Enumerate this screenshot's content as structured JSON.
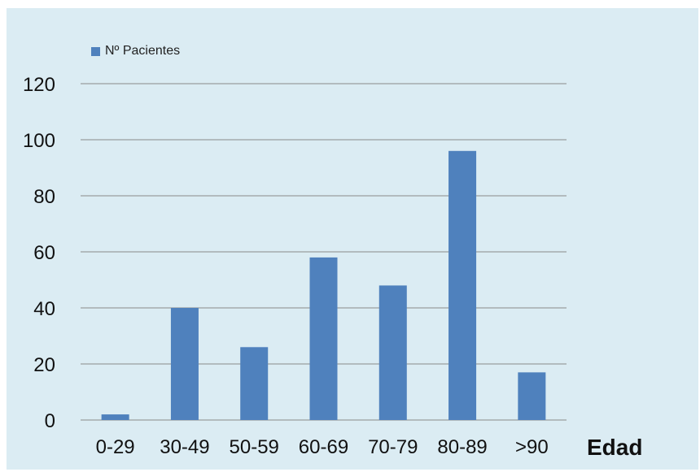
{
  "chart_data": {
    "type": "bar",
    "categories": [
      "0-29",
      "30-49",
      "50-59",
      "60-69",
      "70-79",
      "80-89",
      ">90"
    ],
    "series": [
      {
        "name": "Nº Pacientes",
        "values": [
          2,
          40,
          26,
          58,
          48,
          96,
          17
        ],
        "color": "#4f81bd"
      }
    ],
    "xlabel": "Edad",
    "ylabel": "",
    "ylim": [
      0,
      120
    ],
    "yticks": [
      0,
      20,
      40,
      60,
      80,
      100,
      120
    ],
    "grid": true,
    "legend_position": "top-left",
    "background": "#dbecf3"
  }
}
